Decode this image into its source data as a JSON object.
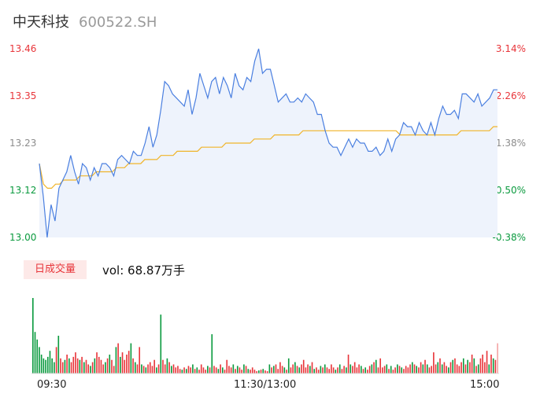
{
  "header": {
    "name": "中天科技",
    "code": "600522.SH"
  },
  "volume": {
    "tab_label": "日成交量",
    "readout": "vol: 68.87万手"
  },
  "colors": {
    "price": "#4a7fe0",
    "avg": "#f0b429",
    "up": "#e8353a",
    "down": "#0a9a3e",
    "area": "#eef3fc"
  },
  "chart_data": [
    {
      "type": "line",
      "ylim": [
        13.0,
        13.46
      ],
      "y_ticks_left": [
        "13.46",
        "13.35",
        "13.23",
        "13.12",
        "13.00"
      ],
      "y_ticks_right": [
        "3.14%",
        "2.26%",
        "1.38%",
        "0.50%",
        "-0.38%"
      ],
      "x_ticks": [
        "09:30",
        "11:30/13:00",
        "15:00"
      ],
      "series": [
        {
          "values": [
            13.18,
            13.1,
            13.0,
            13.08,
            13.04,
            13.12,
            13.14,
            13.16,
            13.2,
            13.16,
            13.13,
            13.18,
            13.17,
            13.14,
            13.17,
            13.15,
            13.18,
            13.18,
            13.17,
            13.15,
            13.19,
            13.2,
            13.19,
            13.18,
            13.21,
            13.2,
            13.2,
            13.23,
            13.27,
            13.22,
            13.25,
            13.31,
            13.38,
            13.37,
            13.35,
            13.34,
            13.33,
            13.32,
            13.36,
            13.3,
            13.34,
            13.4,
            13.37,
            13.34,
            13.38,
            13.39,
            13.35,
            13.39,
            13.37,
            13.34,
            13.4,
            13.37,
            13.36,
            13.39,
            13.38,
            13.43,
            13.46,
            13.4,
            13.41,
            13.41,
            13.37,
            13.33,
            13.34,
            13.35,
            13.33,
            13.33,
            13.34,
            13.33,
            13.35,
            13.34,
            13.33,
            13.3,
            13.3,
            13.26,
            13.23,
            13.22,
            13.22,
            13.2,
            13.22,
            13.24,
            13.22,
            13.24,
            13.23,
            13.23,
            13.21,
            13.21,
            13.22,
            13.2,
            13.21,
            13.24,
            13.21,
            13.24,
            13.25,
            13.28,
            13.27,
            13.27,
            13.25,
            13.28,
            13.26,
            13.25,
            13.28,
            13.25,
            13.29,
            13.32,
            13.3,
            13.3,
            13.31,
            13.29,
            13.35,
            13.35,
            13.34,
            13.33,
            13.35,
            13.32,
            13.33,
            13.34,
            13.36,
            13.36
          ],
          "color_key": "price"
        },
        {
          "values": [
            13.18,
            13.13,
            13.12,
            13.12,
            13.13,
            13.13,
            13.14,
            13.14,
            13.14,
            13.14,
            13.15,
            13.15,
            13.15,
            13.15,
            13.16,
            13.16,
            13.16,
            13.16,
            13.16,
            13.17,
            13.17,
            13.17,
            13.18,
            13.18,
            13.18,
            13.18,
            13.19,
            13.19,
            13.19,
            13.19,
            13.2,
            13.2,
            13.2,
            13.2,
            13.21,
            13.21,
            13.21,
            13.21,
            13.21,
            13.21,
            13.22,
            13.22,
            13.22,
            13.22,
            13.22,
            13.22,
            13.23,
            13.23,
            13.23,
            13.23,
            13.23,
            13.23,
            13.23,
            13.24,
            13.24,
            13.24,
            13.24,
            13.24,
            13.25,
            13.25,
            13.25,
            13.25,
            13.25,
            13.25,
            13.25,
            13.26,
            13.26,
            13.26,
            13.26,
            13.26,
            13.26,
            13.26,
            13.26,
            13.26,
            13.26,
            13.26,
            13.26,
            13.26,
            13.26,
            13.26,
            13.26,
            13.26,
            13.26,
            13.26,
            13.26,
            13.26,
            13.26,
            13.26,
            13.26,
            13.25,
            13.25,
            13.25,
            13.25,
            13.25,
            13.25,
            13.25,
            13.25,
            13.25,
            13.25,
            13.25,
            13.25,
            13.25,
            13.25,
            13.25,
            13.26,
            13.26,
            13.26,
            13.26,
            13.26,
            13.26,
            13.26,
            13.26,
            13.27,
            13.27
          ],
          "color_key": "avg"
        }
      ]
    },
    {
      "type": "bar",
      "values": [
        100,
        55,
        45,
        35,
        25,
        20,
        18,
        22,
        30,
        20,
        15,
        35,
        50,
        20,
        15,
        18,
        25,
        20,
        15,
        22,
        28,
        20,
        18,
        22,
        15,
        18,
        12,
        10,
        15,
        20,
        28,
        22,
        18,
        12,
        15,
        20,
        25,
        18,
        10,
        35,
        40,
        22,
        28,
        18,
        25,
        30,
        40,
        20,
        15,
        12,
        35,
        12,
        10,
        8,
        12,
        15,
        10,
        18,
        8,
        12,
        78,
        18,
        12,
        20,
        15,
        10,
        12,
        8,
        10,
        6,
        5,
        8,
        6,
        10,
        8,
        12,
        6,
        8,
        5,
        12,
        8,
        5,
        10,
        8,
        52,
        10,
        8,
        6,
        12,
        8,
        5,
        18,
        10,
        8,
        12,
        6,
        10,
        8,
        5,
        12,
        10,
        6,
        5,
        8,
        5,
        3,
        4,
        5,
        6,
        4,
        3,
        12,
        8,
        10,
        12,
        6,
        15,
        10,
        8,
        5,
        20,
        8,
        12,
        15,
        10,
        8,
        12,
        18,
        8,
        12,
        10,
        15,
        6,
        8,
        5,
        10,
        8,
        12,
        8,
        6,
        12,
        8,
        5,
        8,
        12,
        6,
        10,
        8,
        25,
        12,
        10,
        15,
        8,
        12,
        10,
        6,
        8,
        5,
        10,
        12,
        15,
        18,
        8,
        20,
        8,
        10,
        12,
        6,
        10,
        5,
        8,
        12,
        10,
        8,
        6,
        10,
        8,
        12,
        15,
        12,
        10,
        8,
        15,
        12,
        18,
        12,
        8,
        10,
        28,
        12,
        15,
        20,
        12,
        15,
        10,
        8,
        15,
        18,
        20,
        12,
        10,
        15,
        20,
        12,
        18,
        15,
        25,
        20,
        10,
        12,
        20,
        25,
        15,
        30,
        12,
        25,
        20,
        18,
        40
      ],
      "colors": [
        "up",
        "down"
      ]
    }
  ]
}
